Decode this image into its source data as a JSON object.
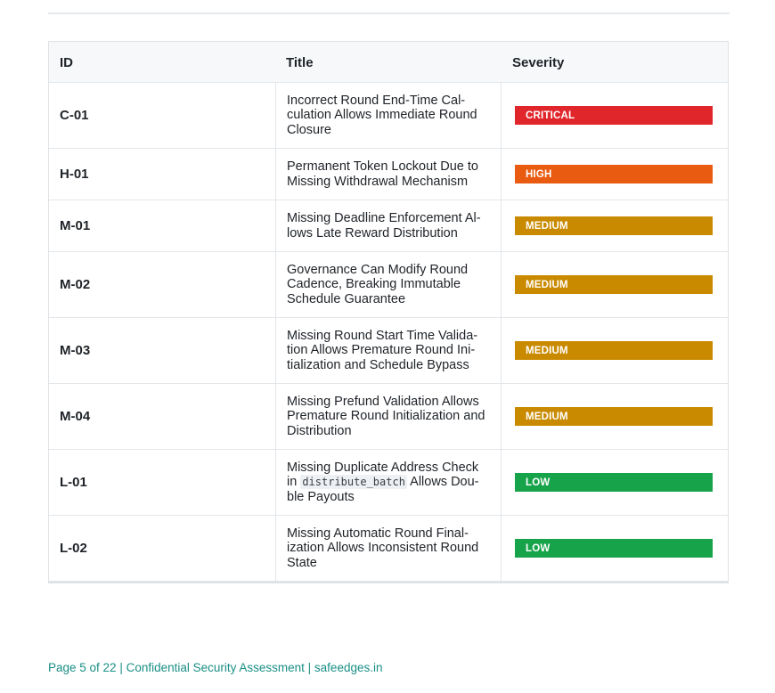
{
  "table": {
    "headers": {
      "id": "ID",
      "title": "Title",
      "severity": "Severity"
    },
    "rows": [
      {
        "id": "C-01",
        "title": "Incorrect Round End-Time Cal-<br>culation Allows Immediate Round<br>Closure",
        "severity": "CRITICAL",
        "color": "#e1262b"
      },
      {
        "id": "H-01",
        "title": "Permanent Token Lockout Due to<br>Missing Withdrawal Mechanism",
        "severity": "HIGH",
        "color": "#e95b10"
      },
      {
        "id": "M-01",
        "title": "Missing Deadline Enforcement Al-<br>lows Late Reward Distribution",
        "severity": "MEDIUM",
        "color": "#c98a00"
      },
      {
        "id": "M-02",
        "title": "Governance Can Modify Round<br>Cadence, Breaking Immutable<br>Schedule Guarantee",
        "severity": "MEDIUM",
        "color": "#c98a00"
      },
      {
        "id": "M-03",
        "title": "Missing Round Start Time Valida-<br>tion Allows Premature Round Ini-<br>tialization and Schedule Bypass",
        "severity": "MEDIUM",
        "color": "#c98a00"
      },
      {
        "id": "M-04",
        "title": "Missing Prefund Validation Allows<br>Premature Round Initialization and<br>Distribution",
        "severity": "MEDIUM",
        "color": "#c98a00"
      },
      {
        "id": "L-01",
        "title": "Missing Duplicate Address Check<br>in <code>distribute_batch</code> Allows Dou-<br>ble Payouts",
        "severity": "LOW",
        "color": "#17a34a"
      },
      {
        "id": "L-02",
        "title": "Missing Automatic Round Final-<br>ization Allows Inconsistent Round<br>State",
        "severity": "LOW",
        "color": "#17a34a"
      }
    ]
  },
  "footer": {
    "text": "Page 5 of 22 | Confidential Security Assessment | safeedges.in"
  }
}
